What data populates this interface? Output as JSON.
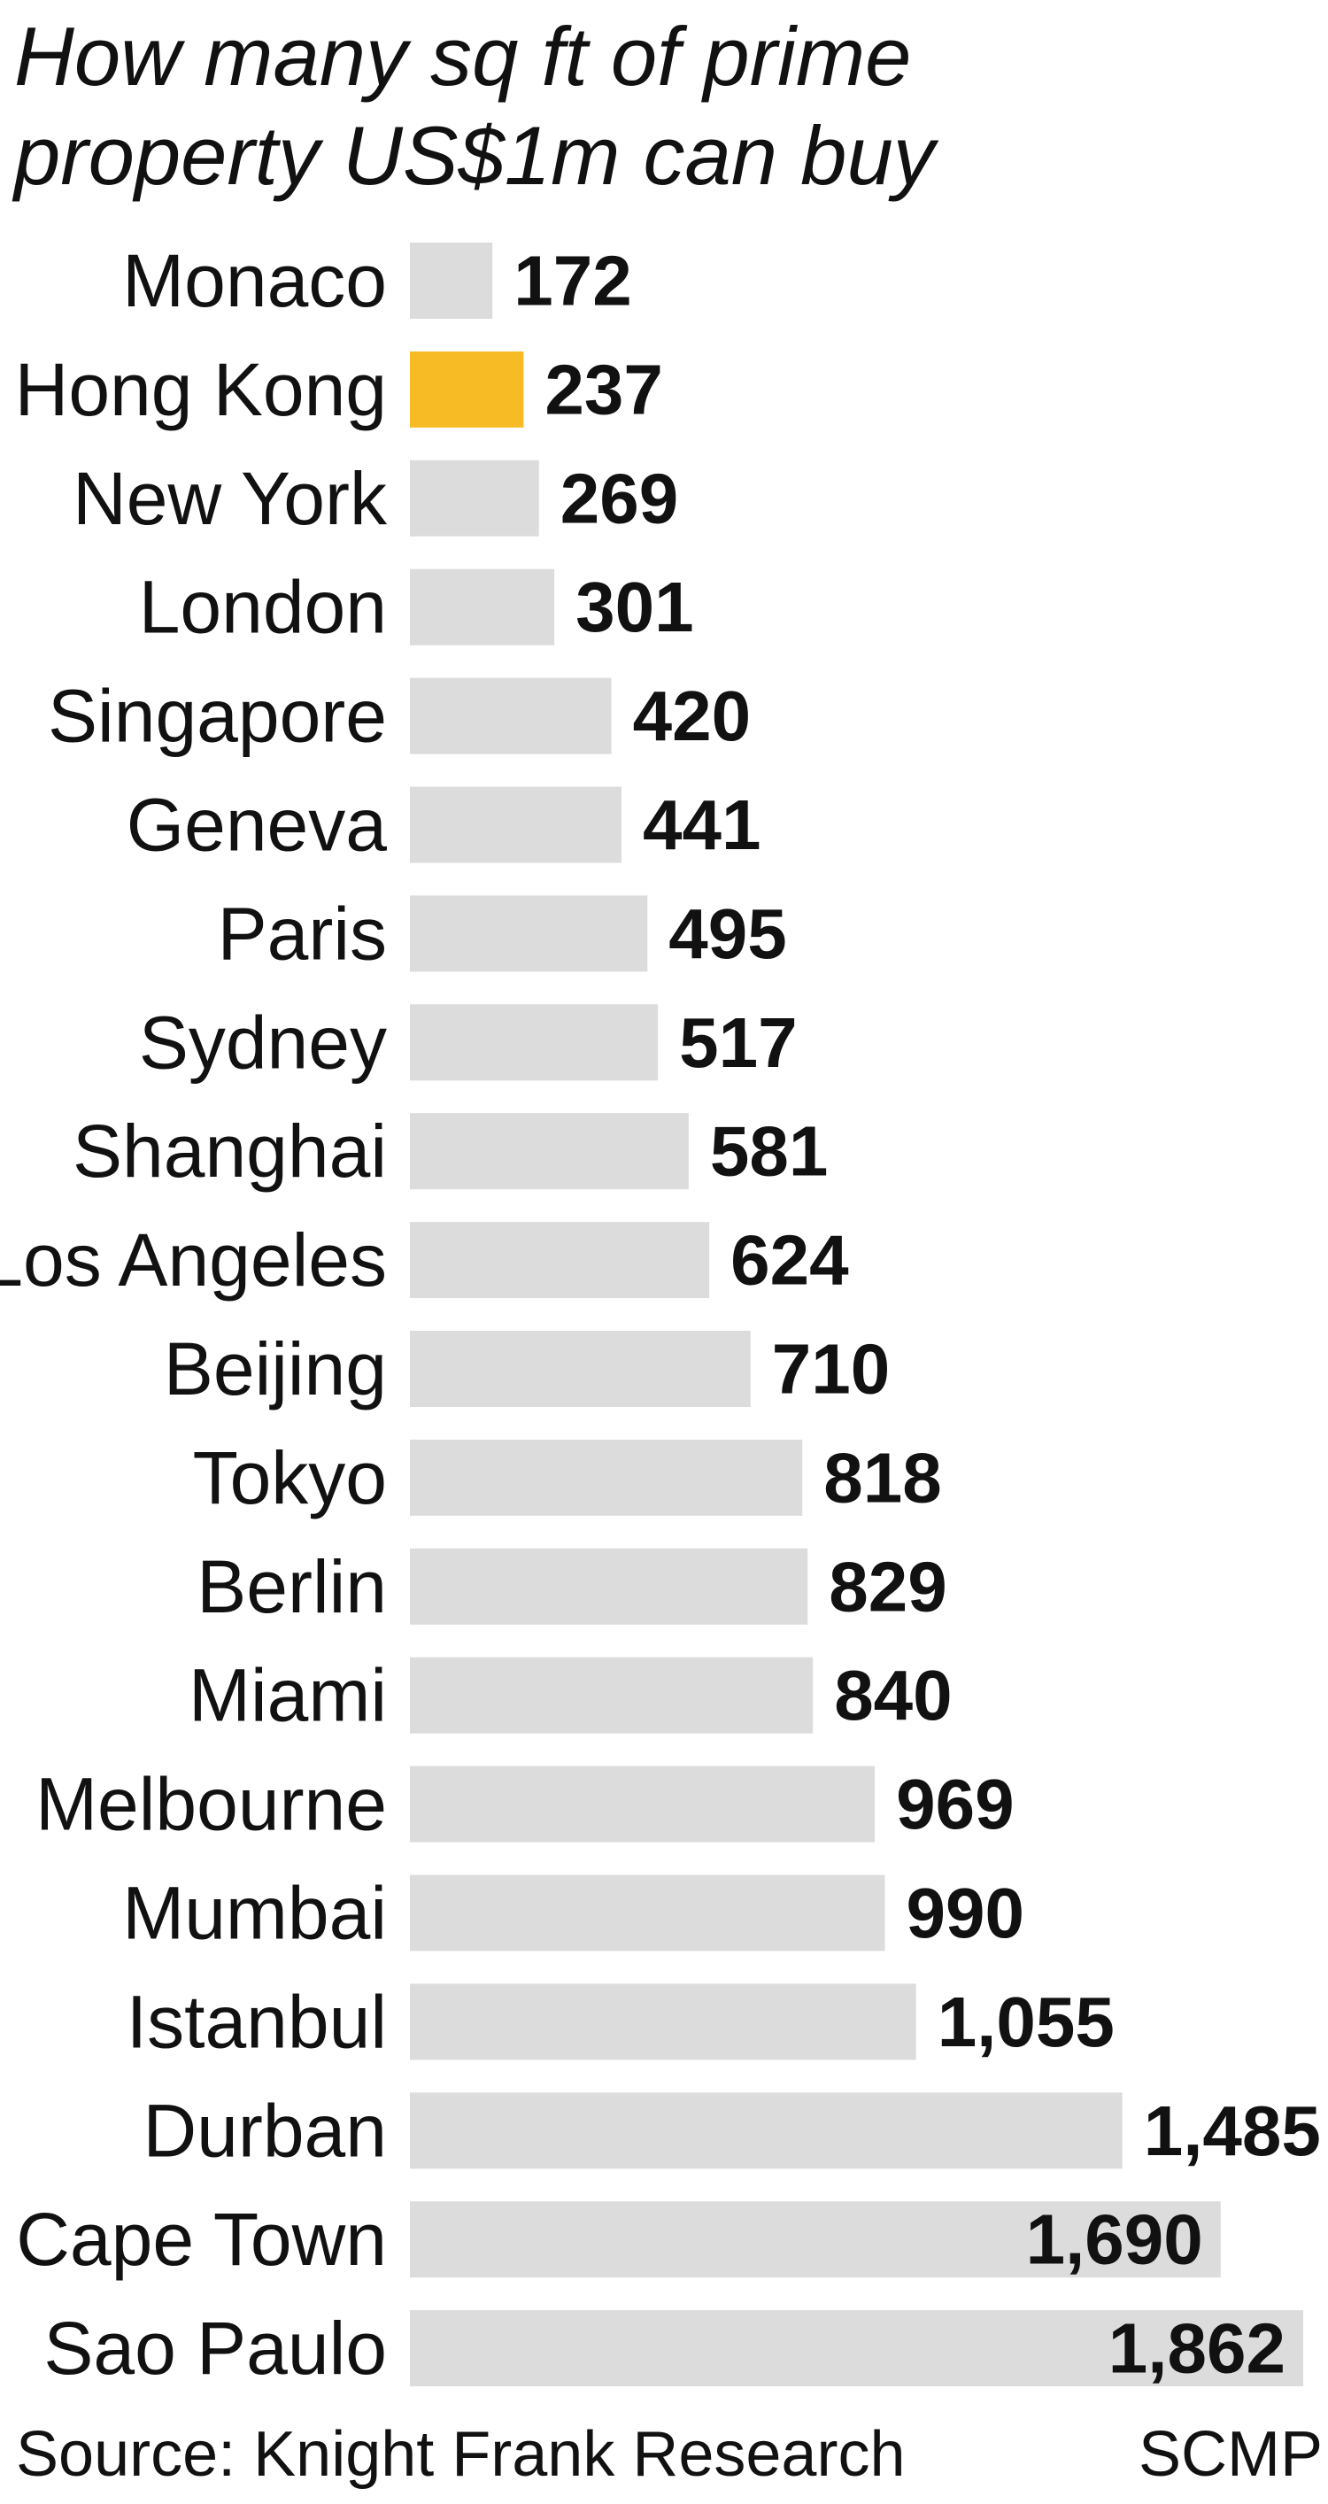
{
  "chart_data": {
    "type": "bar",
    "orientation": "horizontal",
    "title": "How many sq ft of prime property US$1m can buy",
    "categories": [
      "Monaco",
      "Hong Kong",
      "New York",
      "London",
      "Singapore",
      "Geneva",
      "Paris",
      "Sydney",
      "Shanghai",
      "Los Angeles",
      "Beijing",
      "Tokyo",
      "Berlin",
      "Miami",
      "Melbourne",
      "Mumbai",
      "Istanbul",
      "Durban",
      "Cape Town",
      "Sao Paulo"
    ],
    "values": [
      172,
      237,
      269,
      301,
      420,
      441,
      495,
      517,
      581,
      624,
      710,
      818,
      829,
      840,
      969,
      990,
      1055,
      1485,
      1690,
      1862
    ],
    "value_labels": [
      "172",
      "237",
      "269",
      "301",
      "420",
      "441",
      "495",
      "517",
      "581",
      "624",
      "710",
      "818",
      "829",
      "840",
      "969",
      "990",
      "1,055",
      "1,485",
      "1,690",
      "1,862"
    ],
    "colors": [
      "#dcdcdc",
      "#f7bb26",
      "#dcdcdc",
      "#dcdcdc",
      "#dcdcdc",
      "#dcdcdc",
      "#dcdcdc",
      "#dcdcdc",
      "#dcdcdc",
      "#dcdcdc",
      "#dcdcdc",
      "#dcdcdc",
      "#dcdcdc",
      "#dcdcdc",
      "#dcdcdc",
      "#dcdcdc",
      "#dcdcdc",
      "#dcdcdc",
      "#dcdcdc",
      "#dcdcdc"
    ],
    "source": "Source: Knight Frank Research",
    "credit": "SCMP"
  }
}
